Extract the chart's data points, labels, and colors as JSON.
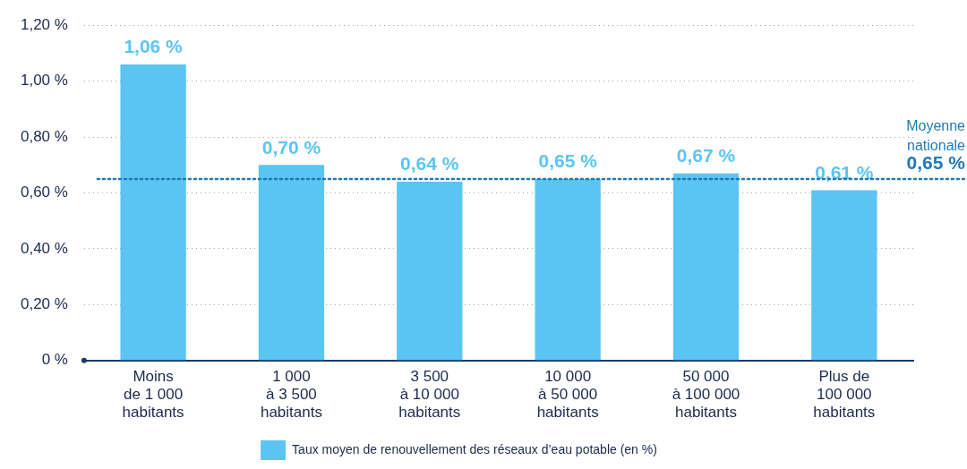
{
  "chart_data": {
    "type": "bar",
    "categories": [
      "Moins\nde 1 000\nhabitants",
      "1 000\nà 3 500\nhabitants",
      "3 500\nà 10 000\nhabitants",
      "10 000\nà 50 000\nhabitants",
      "50 000\nà 100 000\nhabitants",
      "Plus de\n100 000\nhabitants"
    ],
    "series": [
      {
        "name": "Taux moyen de renouvellement des réseaux d’eau potable (en %)",
        "color": "#5bc5f2",
        "values": [
          1.06,
          0.7,
          0.64,
          0.65,
          0.67,
          0.61
        ],
        "value_labels": [
          "1,06 %",
          "0,70 %",
          "0,64 %",
          "0,65 %",
          "0,67 %",
          "0,61 %"
        ]
      }
    ],
    "ylim": [
      0,
      1.2
    ],
    "yticks": [
      {
        "value": 0,
        "label": "0 %"
      },
      {
        "value": 0.2,
        "label": "0,20 %"
      },
      {
        "value": 0.4,
        "label": "0,40 %"
      },
      {
        "value": 0.6,
        "label": "0,60 %"
      },
      {
        "value": 0.8,
        "label": "0,80 %"
      },
      {
        "value": 1.0,
        "label": "1,00 %"
      },
      {
        "value": 1.2,
        "label": "1,20 %"
      }
    ],
    "grid": "y",
    "legend": "bottom",
    "ref_lines": [
      {
        "axis": "y",
        "value": 0.65,
        "label": "Moyenne\nnationale\n0,65 %",
        "color": "#1f7ab8",
        "line_style": "dotted"
      }
    ]
  }
}
